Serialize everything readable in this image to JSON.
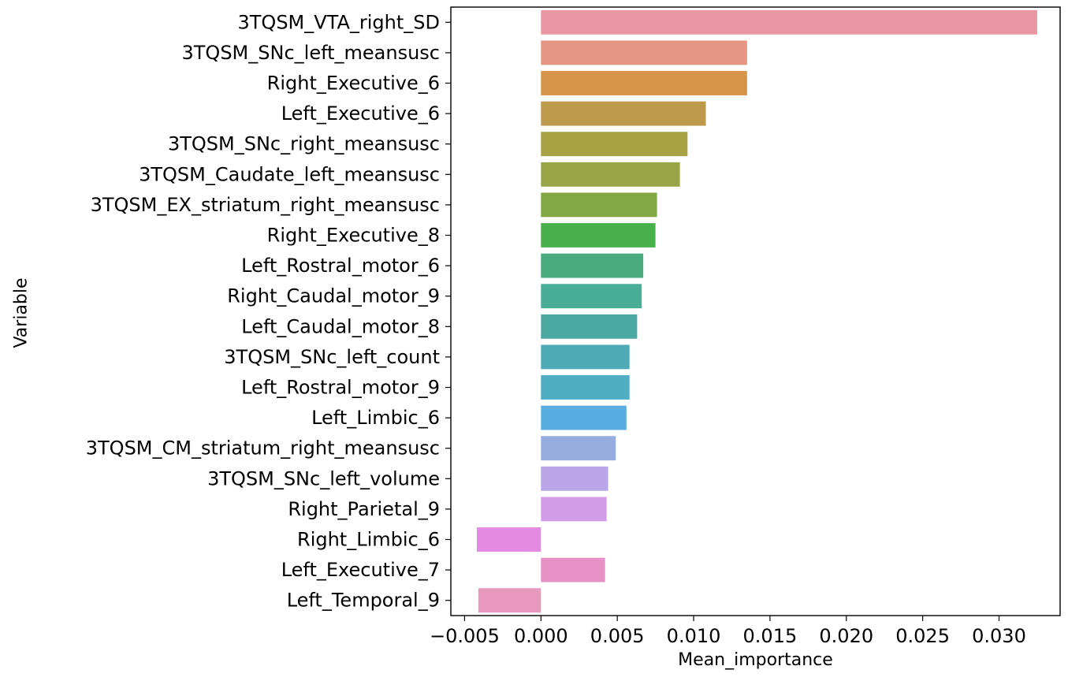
{
  "chart_data": {
    "type": "bar",
    "orientation": "horizontal",
    "xlabel": "Mean_importance",
    "ylabel": "Variable",
    "xlim": [
      -0.0059,
      0.034
    ],
    "xticks": [
      -0.005,
      0.0,
      0.005,
      0.01,
      0.015,
      0.02,
      0.025,
      0.03
    ],
    "xtick_labels": [
      "−0.005",
      "0.000",
      "0.005",
      "0.010",
      "0.015",
      "0.020",
      "0.025",
      "0.030"
    ],
    "grid": false,
    "legend": "none",
    "categories": [
      "3TQSM_VTA_right_SD",
      "3TQSM_SNc_left_meansusc",
      "Right_Executive_6",
      "Left_Executive_6",
      "3TQSM_SNc_right_meansusc",
      "3TQSM_Caudate_left_meansusc",
      "3TQSM_EX_striatum_right_meansusc",
      "Right_Executive_8",
      "Left_Rostral_motor_6",
      "Right_Caudal_motor_9",
      "Left_Caudal_motor_8",
      "3TQSM_SNc_left_count",
      "Left_Rostral_motor_9",
      "Left_Limbic_6",
      "3TQSM_CM_striatum_right_meansusc",
      "3TQSM_SNc_left_volume",
      "Right_Parietal_9",
      "Right_Limbic_6",
      "Left_Executive_7",
      "Left_Temporal_9"
    ],
    "values": [
      0.0325,
      0.0135,
      0.0135,
      0.0108,
      0.0096,
      0.0091,
      0.0076,
      0.0075,
      0.0067,
      0.0066,
      0.0063,
      0.0058,
      0.0058,
      0.0056,
      0.0049,
      0.0044,
      0.0043,
      -0.0042,
      0.0042,
      -0.0041
    ],
    "colors": [
      "#ea96a3",
      "#e59582",
      "#d5944a",
      "#be9a4c",
      "#a8a245",
      "#98a546",
      "#82a845",
      "#49b04e",
      "#4aab7e",
      "#4aad96",
      "#4ca8a2",
      "#4eabb5",
      "#4faec4",
      "#58ace0",
      "#98addf",
      "#b8a6e8",
      "#d09de6",
      "#e48ae3",
      "#e890c8",
      "#e898bd"
    ]
  }
}
